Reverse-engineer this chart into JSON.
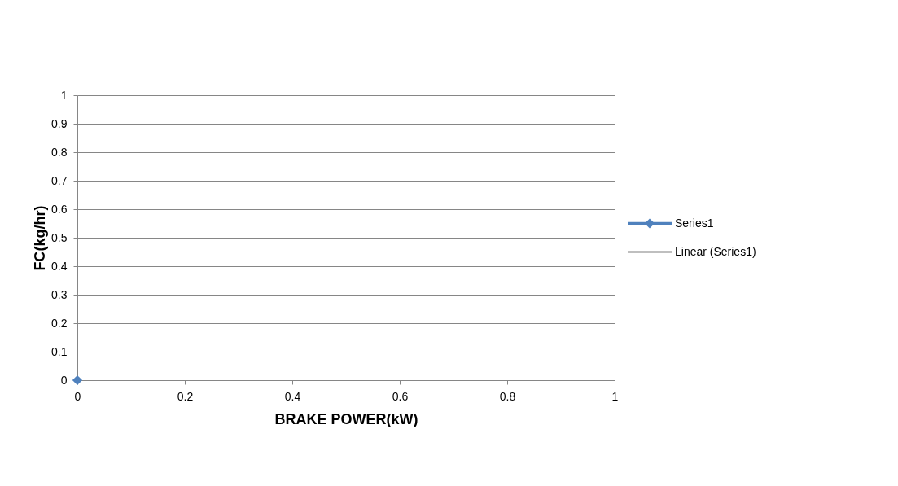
{
  "chart_data": {
    "type": "line",
    "xlabel": "BRAKE POWER(kW)",
    "ylabel": "FC(kg/hr)",
    "x": [
      0
    ],
    "series": [
      {
        "name": "Series1",
        "color": "#4f81bd",
        "values": [
          0
        ]
      },
      {
        "name": "Linear (Series1)",
        "color": "#000000",
        "values": [
          null
        ],
        "type": "line",
        "marker": "none"
      }
    ],
    "xlim": [
      0,
      1
    ],
    "xticks": [
      0,
      0.2,
      0.4,
      0.6,
      0.8,
      1
    ],
    "ylim": [
      0,
      1
    ],
    "yticks": [
      0,
      0.1,
      0.2,
      0.3,
      0.4,
      0.5,
      0.6,
      0.7,
      0.8,
      0.9,
      1
    ],
    "grid": "y",
    "legend": "right",
    "marker": "diamond"
  }
}
